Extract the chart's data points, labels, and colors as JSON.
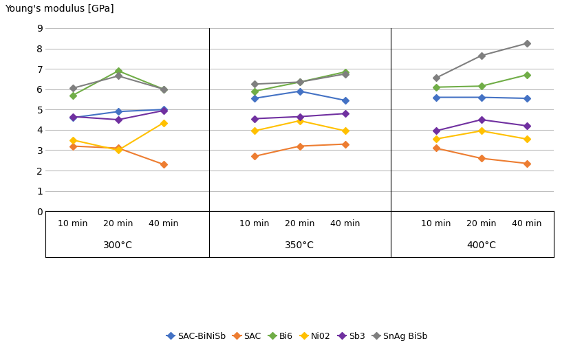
{
  "ylabel": "Young's modulus [GPa]",
  "ylim": [
    0,
    9
  ],
  "yticks": [
    0,
    1,
    2,
    3,
    4,
    5,
    6,
    7,
    8,
    9
  ],
  "times": [
    "10 min",
    "20 min",
    "40 min"
  ],
  "series": {
    "SAC-BiNiSb": {
      "color": "#4472C4",
      "marker": "D",
      "data": {
        "300": [
          4.6,
          4.9,
          5.0
        ],
        "350": [
          5.55,
          5.9,
          5.45
        ],
        "400": [
          5.6,
          5.6,
          5.55
        ]
      }
    },
    "SAC": {
      "color": "#ED7D31",
      "marker": "D",
      "data": {
        "300": [
          3.2,
          3.1,
          2.3
        ],
        "350": [
          2.7,
          3.2,
          3.3
        ],
        "400": [
          3.1,
          2.6,
          2.35
        ]
      }
    },
    "Bi6": {
      "color": "#70AD47",
      "marker": "D",
      "data": {
        "300": [
          5.7,
          6.9,
          6.0
        ],
        "350": [
          5.9,
          6.35,
          6.85
        ],
        "400": [
          6.1,
          6.15,
          6.7
        ]
      }
    },
    "Ni02": {
      "color": "#FFC000",
      "marker": "D",
      "data": {
        "300": [
          3.5,
          3.0,
          4.35
        ],
        "350": [
          3.95,
          4.45,
          3.95
        ],
        "400": [
          3.55,
          3.95,
          3.55
        ]
      }
    },
    "Sb3": {
      "color": "#7030A0",
      "marker": "D",
      "data": {
        "300": [
          4.65,
          4.5,
          4.95
        ],
        "350": [
          4.55,
          4.65,
          4.8
        ],
        "400": [
          3.95,
          4.5,
          4.2
        ]
      }
    },
    "SnAg BiSb": {
      "color": "#7F7F7F",
      "marker": "D",
      "data": {
        "300": [
          6.05,
          6.65,
          6.0
        ],
        "350": [
          6.25,
          6.35,
          6.75
        ],
        "400": [
          6.55,
          7.65,
          8.25
        ]
      }
    }
  },
  "group_labels": [
    "300°C",
    "350°C",
    "400°C"
  ],
  "background_color": "#FFFFFF",
  "grid_color": "#BFBFBF",
  "divider_color": "#000000",
  "box_color": "#000000",
  "group_starts": [
    0,
    4,
    8
  ],
  "temps": [
    "300",
    "350",
    "400"
  ],
  "xlim": [
    -0.6,
    10.6
  ]
}
